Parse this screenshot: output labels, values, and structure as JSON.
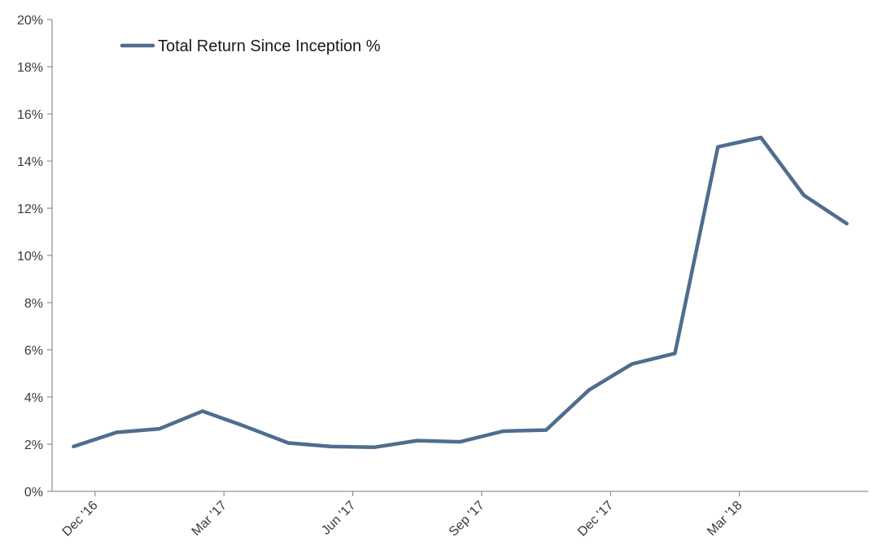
{
  "chart_data": {
    "type": "line",
    "series": [
      {
        "name": "Total Return Since Inception %",
        "color": "#4e6d8f",
        "values": [
          1.9,
          2.5,
          2.65,
          3.4,
          2.75,
          2.05,
          1.9,
          1.87,
          2.15,
          2.1,
          2.55,
          2.6,
          4.3,
          5.4,
          5.85,
          14.6,
          15.0,
          12.55,
          11.35
        ]
      }
    ],
    "yticks": [
      "0%",
      "2%",
      "4%",
      "6%",
      "8%",
      "10%",
      "12%",
      "14%",
      "16%",
      "18%",
      "20%"
    ],
    "ylim": [
      0,
      20
    ],
    "xlabels": [
      {
        "index": 0.5,
        "label": "Dec '16"
      },
      {
        "index": 3.5,
        "label": "Mar '17"
      },
      {
        "index": 6.5,
        "label": "Jun '17"
      },
      {
        "index": 9.5,
        "label": "Sep '17"
      },
      {
        "index": 12.5,
        "label": "Dec '17"
      },
      {
        "index": 15.5,
        "label": "Mar '18"
      }
    ],
    "legend_position": "top-left",
    "grid": false
  }
}
